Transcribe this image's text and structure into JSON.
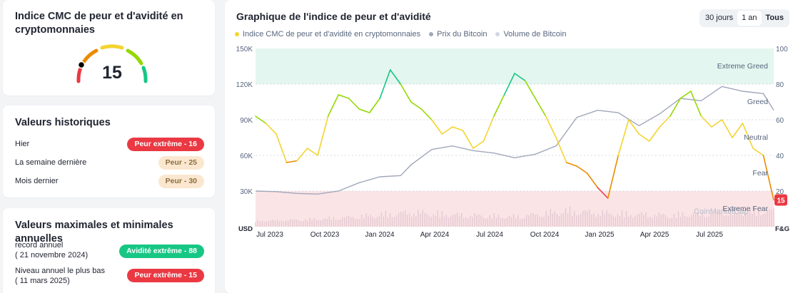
{
  "index_card": {
    "title": "Indice CMC de peur et d'avidité en cryptomonnaies",
    "value": "15",
    "colors": {
      "red": "#ea3943",
      "orange": "#ea8c00",
      "yellow": "#f3d42f",
      "lightgreen": "#93d900",
      "green": "#16c784"
    }
  },
  "historical": {
    "title": "Valeurs historiques",
    "rows": [
      {
        "label": "Hier",
        "badge": "Peur extrême - 16",
        "tone": "red"
      },
      {
        "label": "La semaine dernière",
        "badge": "Peur - 25",
        "tone": "beige"
      },
      {
        "label": "Mois dernier",
        "badge": "Peur - 30",
        "tone": "beige"
      }
    ]
  },
  "annual": {
    "title": "Valeurs maximales et minimales annuelles",
    "rows": [
      {
        "label": "record annuel",
        "date": "( 21 novembre 2024)",
        "badge": "Avidité extrême - 88",
        "tone": "green"
      },
      {
        "label": "Niveau annuel le plus bas",
        "date": "( 11 mars 2025)",
        "badge": "Peur extrême - 15",
        "tone": "red"
      }
    ]
  },
  "chart_header": {
    "title": "Graphique de l'indice de peur et d'avidité",
    "ranges": [
      "30 jours",
      "1 an",
      "Tous"
    ],
    "active_range": "Tous",
    "legend": [
      {
        "label": "Indice CMC de peur et d'avidité en cryptomonnaies",
        "color": "#f3d42f"
      },
      {
        "label": "Prix du Bitcoin",
        "color": "#a1a7bb"
      },
      {
        "label": "Volume de Bitcoin",
        "color": "#cfd6e4"
      }
    ],
    "watermark": "CoinMarketCap"
  },
  "chart_data": {
    "type": "line",
    "x_labels": [
      "Jul 2023",
      "Oct 2023",
      "Jan 2024",
      "Apr 2024",
      "Jul 2024",
      "Oct 2024",
      "Jan 2025",
      "Apr 2025",
      "Jul 2025"
    ],
    "left_axis": {
      "label": "USD",
      "ticks": [
        "30K",
        "60K",
        "90K",
        "120K",
        "150K"
      ],
      "range": [
        0,
        150000
      ]
    },
    "right_axis": {
      "label": "F&G",
      "ticks": [
        "20",
        "40",
        "60",
        "80",
        "100"
      ],
      "range": [
        0,
        100
      ]
    },
    "zones": [
      {
        "label": "Extreme Greed",
        "range": [
          80,
          100
        ],
        "color": "#e3f6ef"
      },
      {
        "label": "Greed",
        "range": [
          60,
          80
        ]
      },
      {
        "label": "Neutral",
        "range": [
          40,
          60
        ]
      },
      {
        "label": "Fear",
        "range": [
          20,
          40
        ]
      },
      {
        "label": "Extreme Fear",
        "range": [
          0,
          20
        ],
        "color": "#fbe4e6"
      }
    ],
    "current_fg": "15",
    "series": [
      {
        "name": "Indice CMC de peur et d'avidité en cryptomonnaies",
        "t": [
          0,
          0.02,
          0.04,
          0.06,
          0.08,
          0.1,
          0.12,
          0.14,
          0.16,
          0.18,
          0.2,
          0.22,
          0.24,
          0.26,
          0.28,
          0.3,
          0.32,
          0.34,
          0.36,
          0.38,
          0.4,
          0.42,
          0.44,
          0.46,
          0.48,
          0.5,
          0.52,
          0.54,
          0.56,
          0.58,
          0.6,
          0.62,
          0.64,
          0.66,
          0.68,
          0.7,
          0.72,
          0.74,
          0.76,
          0.78,
          0.8,
          0.82,
          0.84,
          0.86,
          0.88,
          0.9,
          0.92,
          0.94,
          0.96,
          0.98,
          1
        ],
        "values": [
          62,
          58,
          52,
          36,
          37,
          44,
          40,
          62,
          74,
          72,
          66,
          64,
          72,
          88,
          80,
          70,
          66,
          60,
          52,
          56,
          54,
          44,
          48,
          62,
          74,
          86,
          82,
          72,
          62,
          50,
          36,
          34,
          30,
          22,
          16,
          40,
          60,
          52,
          48,
          56,
          62,
          72,
          76,
          62,
          56,
          60,
          50,
          58,
          44,
          40,
          15
        ]
      },
      {
        "name": "Prix du Bitcoin",
        "t": [
          0,
          0.04,
          0.08,
          0.12,
          0.16,
          0.2,
          0.24,
          0.28,
          0.3,
          0.34,
          0.38,
          0.42,
          0.46,
          0.5,
          0.54,
          0.58,
          0.62,
          0.66,
          0.7,
          0.74,
          0.78,
          0.82,
          0.86,
          0.9,
          0.94,
          0.98,
          1
        ],
        "values": [
          30000,
          29500,
          28000,
          27500,
          30000,
          37000,
          42000,
          43000,
          52000,
          65000,
          68000,
          64000,
          62000,
          58000,
          61000,
          68000,
          92000,
          98000,
          96000,
          85000,
          95000,
          108000,
          106000,
          118000,
          114000,
          112000,
          98000
        ]
      },
      {
        "name": "Volume de Bitcoin",
        "t": [
          0,
          0.1,
          0.2,
          0.3,
          0.4,
          0.5,
          0.6,
          0.7,
          0.8,
          0.9,
          1
        ],
        "values": [
          0.2,
          0.3,
          0.5,
          0.8,
          0.6,
          0.5,
          0.9,
          0.7,
          0.6,
          0.8,
          0.9
        ]
      }
    ]
  }
}
